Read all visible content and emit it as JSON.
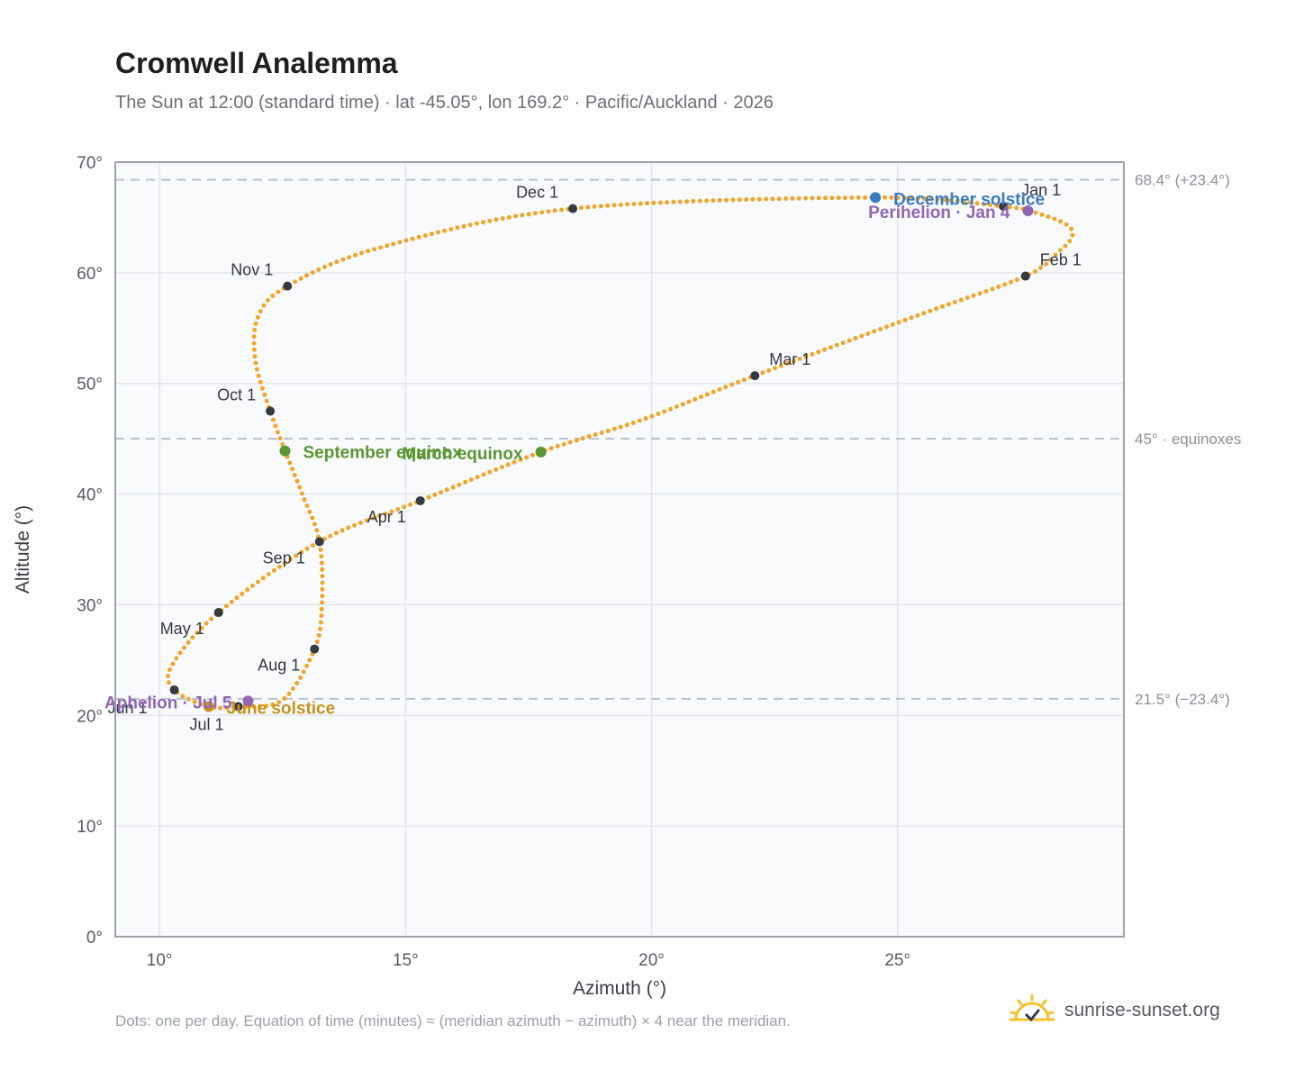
{
  "title": "Cromwell Analemma",
  "subtitle": "The Sun at 12:00 (standard time) · lat -45.05°, lon 169.2° · Pacific/Auckland · 2026",
  "footnote": "Dots: one per day. Equation of time (minutes) ≈ (meridian azimuth − azimuth) × 4 near the meridian.",
  "brand": {
    "text": "sunrise-sunset.org",
    "icon": "sun-logo-icon"
  },
  "colors": {
    "curve": "#f2a52a",
    "month_marker": "#343a40",
    "equinox": "#5a9632",
    "december_solstice": "#3a7bbf",
    "june_solstice": "#c8921a",
    "apsis": "#9166b4",
    "plot_bg": "#f8fafc",
    "grid": "#e3e7ec",
    "ref_line": "#b8c2cc",
    "frame": "#9aa3ae"
  },
  "chart_data": {
    "type": "scatter",
    "xlabel": "Azimuth (°)",
    "ylabel": "Altitude (°)",
    "xlim": [
      9.1,
      29.6
    ],
    "ylim": [
      0,
      70
    ],
    "xticks": [
      {
        "v": 10,
        "label": "10°"
      },
      {
        "v": 15,
        "label": "15°"
      },
      {
        "v": 20,
        "label": "20°"
      },
      {
        "v": 25,
        "label": "25°"
      }
    ],
    "yticks": [
      {
        "v": 0,
        "label": "0°"
      },
      {
        "v": 10,
        "label": "10°"
      },
      {
        "v": 20,
        "label": "20°"
      },
      {
        "v": 30,
        "label": "30°"
      },
      {
        "v": 40,
        "label": "40°"
      },
      {
        "v": 50,
        "label": "50°"
      },
      {
        "v": 60,
        "label": "60°"
      },
      {
        "v": 70,
        "label": "70°"
      }
    ],
    "grid": true,
    "reference_lines": [
      {
        "y": 68.4,
        "label": "68.4° (+23.4°)"
      },
      {
        "y": 45.0,
        "label": "45° · equinoxes"
      },
      {
        "y": 21.5,
        "label": "21.5° (−23.4°)"
      }
    ],
    "analemma_path": [
      [
        27.15,
        66.0
      ],
      [
        27.9,
        65.3
      ],
      [
        28.45,
        64.3
      ],
      [
        28.55,
        63.3
      ],
      [
        28.3,
        62.0
      ],
      [
        27.6,
        59.7
      ],
      [
        25.5,
        56.3
      ],
      [
        22.1,
        50.7
      ],
      [
        19.8,
        46.7
      ],
      [
        17.75,
        43.8
      ],
      [
        15.3,
        39.4
      ],
      [
        13.25,
        35.7
      ],
      [
        11.2,
        29.3
      ],
      [
        10.25,
        24.5
      ],
      [
        10.3,
        22.3
      ],
      [
        11.0,
        20.8
      ],
      [
        11.6,
        20.8
      ],
      [
        12.5,
        21.4
      ],
      [
        13.15,
        26.0
      ],
      [
        13.3,
        30.0
      ],
      [
        13.25,
        35.7
      ],
      [
        12.9,
        40.0
      ],
      [
        12.55,
        43.9
      ],
      [
        12.25,
        47.5
      ],
      [
        11.95,
        52.0
      ],
      [
        12.0,
        56.0
      ],
      [
        12.6,
        58.8
      ],
      [
        14.5,
        62.3
      ],
      [
        18.4,
        65.8
      ],
      [
        24.5,
        66.8
      ],
      [
        27.15,
        66.0
      ]
    ],
    "month_markers": [
      {
        "label": "Jan 1",
        "x": 27.15,
        "y": 66.0
      },
      {
        "label": "Feb 1",
        "x": 27.6,
        "y": 59.7
      },
      {
        "label": "Mar 1",
        "x": 22.1,
        "y": 50.7
      },
      {
        "label": "Apr 1",
        "x": 15.3,
        "y": 39.4
      },
      {
        "label": "May 1",
        "x": 11.2,
        "y": 29.3
      },
      {
        "label": "Jun 1",
        "x": 10.3,
        "y": 22.3
      },
      {
        "label": "Jul 1",
        "x": 11.6,
        "y": 20.8
      },
      {
        "label": "Aug 1",
        "x": 13.15,
        "y": 26.0
      },
      {
        "label": "Sep 1",
        "x": 13.25,
        "y": 35.7
      },
      {
        "label": "Oct 1",
        "x": 12.25,
        "y": 47.5
      },
      {
        "label": "Nov 1",
        "x": 12.6,
        "y": 58.8
      },
      {
        "label": "Dec 1",
        "x": 18.4,
        "y": 65.8
      }
    ],
    "events": [
      {
        "label": "December solstice",
        "x": 24.55,
        "y": 66.8,
        "color": "#3a7bbf"
      },
      {
        "label": "Perihelion · Jan 4",
        "x": 27.65,
        "y": 65.6,
        "color": "#9166b4"
      },
      {
        "label": "March equinox",
        "x": 17.75,
        "y": 43.8,
        "color": "#5a9632"
      },
      {
        "label": "September equinox",
        "x": 12.55,
        "y": 43.9,
        "color": "#5a9632"
      },
      {
        "label": "June solstice",
        "x": 11.0,
        "y": 20.8,
        "color": "#c8921a"
      },
      {
        "label": "Aphelion · Jul 5",
        "x": 11.8,
        "y": 21.3,
        "color": "#9166b4"
      }
    ]
  }
}
